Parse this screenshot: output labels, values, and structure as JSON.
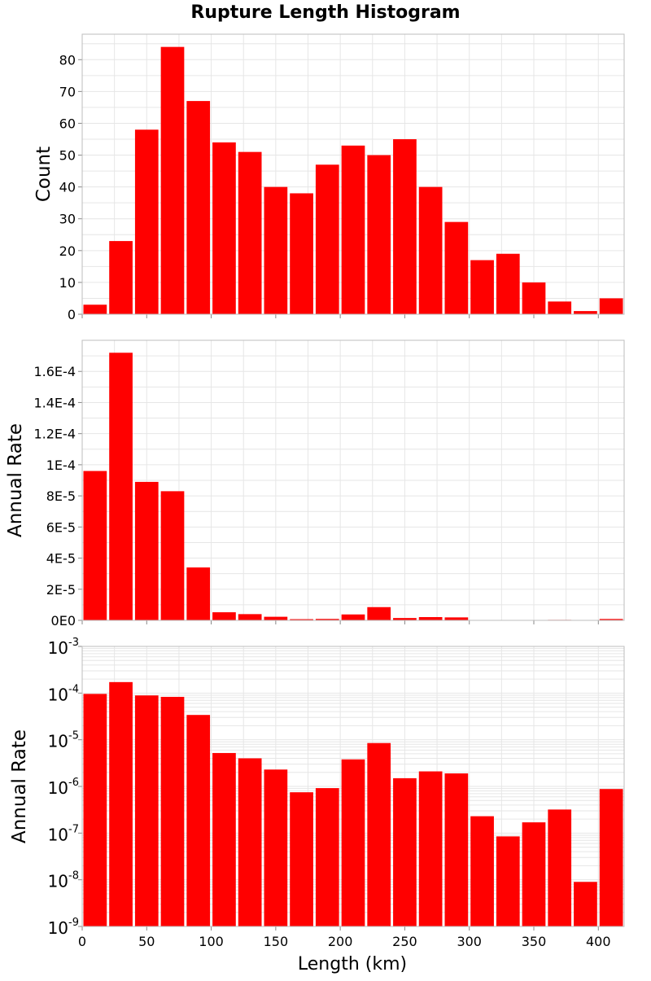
{
  "title": "Rupture Length Histogram",
  "colors": {
    "bar": "#ff0000",
    "grid": "#e6e6e6",
    "frame": "#bdbdbd"
  },
  "chart_data": [
    {
      "type": "bar",
      "ylabel": "Count",
      "xlabel": "",
      "grid": true,
      "bin_width": 20,
      "x": [
        10,
        30,
        50,
        70,
        90,
        110,
        130,
        150,
        170,
        190,
        210,
        230,
        250,
        270,
        290,
        310,
        330,
        350,
        370,
        390,
        410
      ],
      "values": [
        3,
        23,
        58,
        84,
        67,
        54,
        51,
        40,
        38,
        47,
        53,
        50,
        55,
        40,
        29,
        17,
        19,
        10,
        4,
        1,
        5
      ],
      "xlim": [
        0,
        420
      ],
      "ylim": [
        0,
        88
      ],
      "yticks": [
        0,
        10,
        20,
        30,
        40,
        50,
        60,
        70,
        80
      ],
      "ytick_labels": [
        "0",
        "10",
        "20",
        "30",
        "40",
        "50",
        "60",
        "70",
        "80"
      ]
    },
    {
      "type": "bar",
      "ylabel": "Annual Rate",
      "xlabel": "",
      "grid": true,
      "bin_width": 20,
      "x": [
        10,
        30,
        50,
        70,
        90,
        110,
        130,
        150,
        170,
        190,
        210,
        230,
        250,
        270,
        290,
        310,
        330,
        350,
        370,
        390,
        410
      ],
      "values": [
        9.6e-05,
        0.000172,
        8.9e-05,
        8.3e-05,
        3.4e-05,
        5.2e-06,
        4e-06,
        2.3e-06,
        7.5e-07,
        9.2e-07,
        3.8e-06,
        8.5e-06,
        1.5e-06,
        2.1e-06,
        1.9e-06,
        2.3e-07,
        8.5e-08,
        1.7e-07,
        3.2e-07,
        9e-09,
        8.8e-07
      ],
      "xlim": [
        0,
        420
      ],
      "ylim": [
        0,
        0.00018
      ],
      "yticks": [
        0,
        2e-05,
        4e-05,
        6e-05,
        8e-05,
        0.0001,
        0.00012,
        0.00014,
        0.00016
      ],
      "ytick_labels": [
        "0E0",
        "2E-5",
        "4E-5",
        "6E-5",
        "8E-5",
        "1E-4",
        "1.2E-4",
        "1.4E-4",
        "1.6E-4"
      ]
    },
    {
      "type": "bar",
      "ylabel": "Annual Rate",
      "xlabel": "Length (km)",
      "grid": true,
      "yscale": "log",
      "bin_width": 20,
      "x": [
        10,
        30,
        50,
        70,
        90,
        110,
        130,
        150,
        170,
        190,
        210,
        230,
        250,
        270,
        290,
        310,
        330,
        350,
        370,
        390,
        410
      ],
      "values": [
        9.6e-05,
        0.000172,
        8.9e-05,
        8.3e-05,
        3.4e-05,
        5.2e-06,
        4e-06,
        2.3e-06,
        7.5e-07,
        9.2e-07,
        3.8e-06,
        8.5e-06,
        1.5e-06,
        2.1e-06,
        1.9e-06,
        2.3e-07,
        8.5e-08,
        1.7e-07,
        3.2e-07,
        9e-09,
        8.8e-07
      ],
      "xlim": [
        0,
        420
      ],
      "ylim": [
        1e-09,
        0.001
      ],
      "ytick_bases": [
        "10",
        "10",
        "10",
        "10",
        "10",
        "10",
        "10"
      ],
      "ytick_exponents": [
        "-9",
        "-8",
        "-7",
        "-6",
        "-5",
        "-4",
        "-3"
      ],
      "xticks": [
        0,
        50,
        100,
        150,
        200,
        250,
        300,
        350,
        400
      ],
      "xtick_labels": [
        "0",
        "50",
        "100",
        "150",
        "200",
        "250",
        "300",
        "350",
        "400"
      ]
    }
  ]
}
